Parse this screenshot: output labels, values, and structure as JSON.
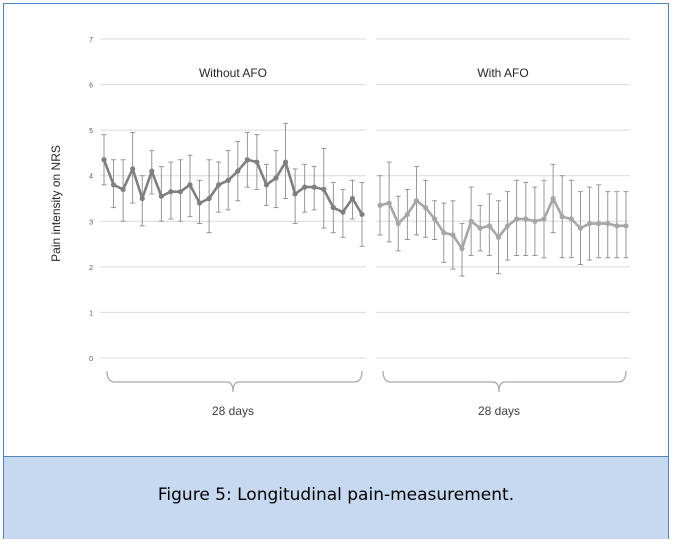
{
  "caption": "Figure 5: Longitudinal pain-measurement.",
  "colors": {
    "frame_border": "#4f81bd",
    "caption_bg": "#c6d9f1",
    "grid": "#d9d9d9",
    "without_line": "#7f7f7f",
    "with_line": "#a6a6a6",
    "error_bar": "#8c8c8c"
  },
  "chart_data": {
    "type": "line",
    "ylabel": "Pain intensity on NRS",
    "ylim": [
      0,
      7
    ],
    "yticks": [
      "0",
      "1",
      "2",
      "3",
      "4",
      "5",
      "6",
      "7"
    ],
    "grid": true,
    "panels": [
      {
        "title": "Without AFO",
        "xlabel": "28 days",
        "values": [
          4.35,
          3.8,
          3.7,
          4.15,
          3.5,
          4.1,
          3.55,
          3.65,
          3.65,
          3.8,
          3.4,
          3.5,
          3.8,
          3.9,
          4.1,
          4.35,
          4.3,
          3.8,
          3.95,
          4.3,
          3.6,
          3.75,
          3.75,
          3.7,
          3.3,
          3.2,
          3.5,
          3.15
        ],
        "upper": [
          4.9,
          4.35,
          4.35,
          4.95,
          4.0,
          4.55,
          4.2,
          4.3,
          4.35,
          4.45,
          3.9,
          4.35,
          4.3,
          4.55,
          4.75,
          4.95,
          4.9,
          4.25,
          4.55,
          5.15,
          4.15,
          4.25,
          4.2,
          4.6,
          3.85,
          3.7,
          3.9,
          3.85
        ],
        "lower": [
          3.8,
          3.3,
          3.0,
          3.4,
          2.9,
          3.6,
          3.0,
          3.05,
          3.0,
          3.1,
          2.95,
          2.75,
          3.2,
          3.25,
          3.45,
          3.75,
          3.7,
          3.35,
          3.3,
          3.5,
          2.95,
          3.2,
          3.25,
          2.85,
          2.75,
          2.65,
          3.05,
          2.45
        ]
      },
      {
        "title": "With AFO",
        "xlabel": "28 days",
        "values": [
          3.35,
          3.4,
          2.95,
          3.15,
          3.45,
          3.3,
          3.05,
          2.75,
          2.7,
          2.4,
          3.0,
          2.85,
          2.9,
          2.65,
          2.9,
          3.05,
          3.05,
          3.0,
          3.05,
          3.5,
          3.1,
          3.05,
          2.85,
          2.95,
          2.95,
          2.95,
          2.9,
          2.9
        ],
        "upper": [
          4.0,
          4.3,
          3.55,
          3.7,
          4.2,
          3.9,
          3.45,
          3.4,
          3.45,
          2.95,
          3.75,
          3.35,
          3.6,
          3.45,
          3.65,
          3.9,
          3.85,
          3.75,
          3.9,
          4.25,
          4.0,
          3.9,
          3.65,
          3.75,
          3.8,
          3.65,
          3.65,
          3.65
        ],
        "lower": [
          2.7,
          2.55,
          2.35,
          2.6,
          2.7,
          2.65,
          2.6,
          2.1,
          1.95,
          1.8,
          2.25,
          2.35,
          2.25,
          1.85,
          2.15,
          2.25,
          2.25,
          2.25,
          2.2,
          2.75,
          2.2,
          2.2,
          2.05,
          2.15,
          2.2,
          2.2,
          2.2,
          2.2
        ]
      }
    ]
  }
}
